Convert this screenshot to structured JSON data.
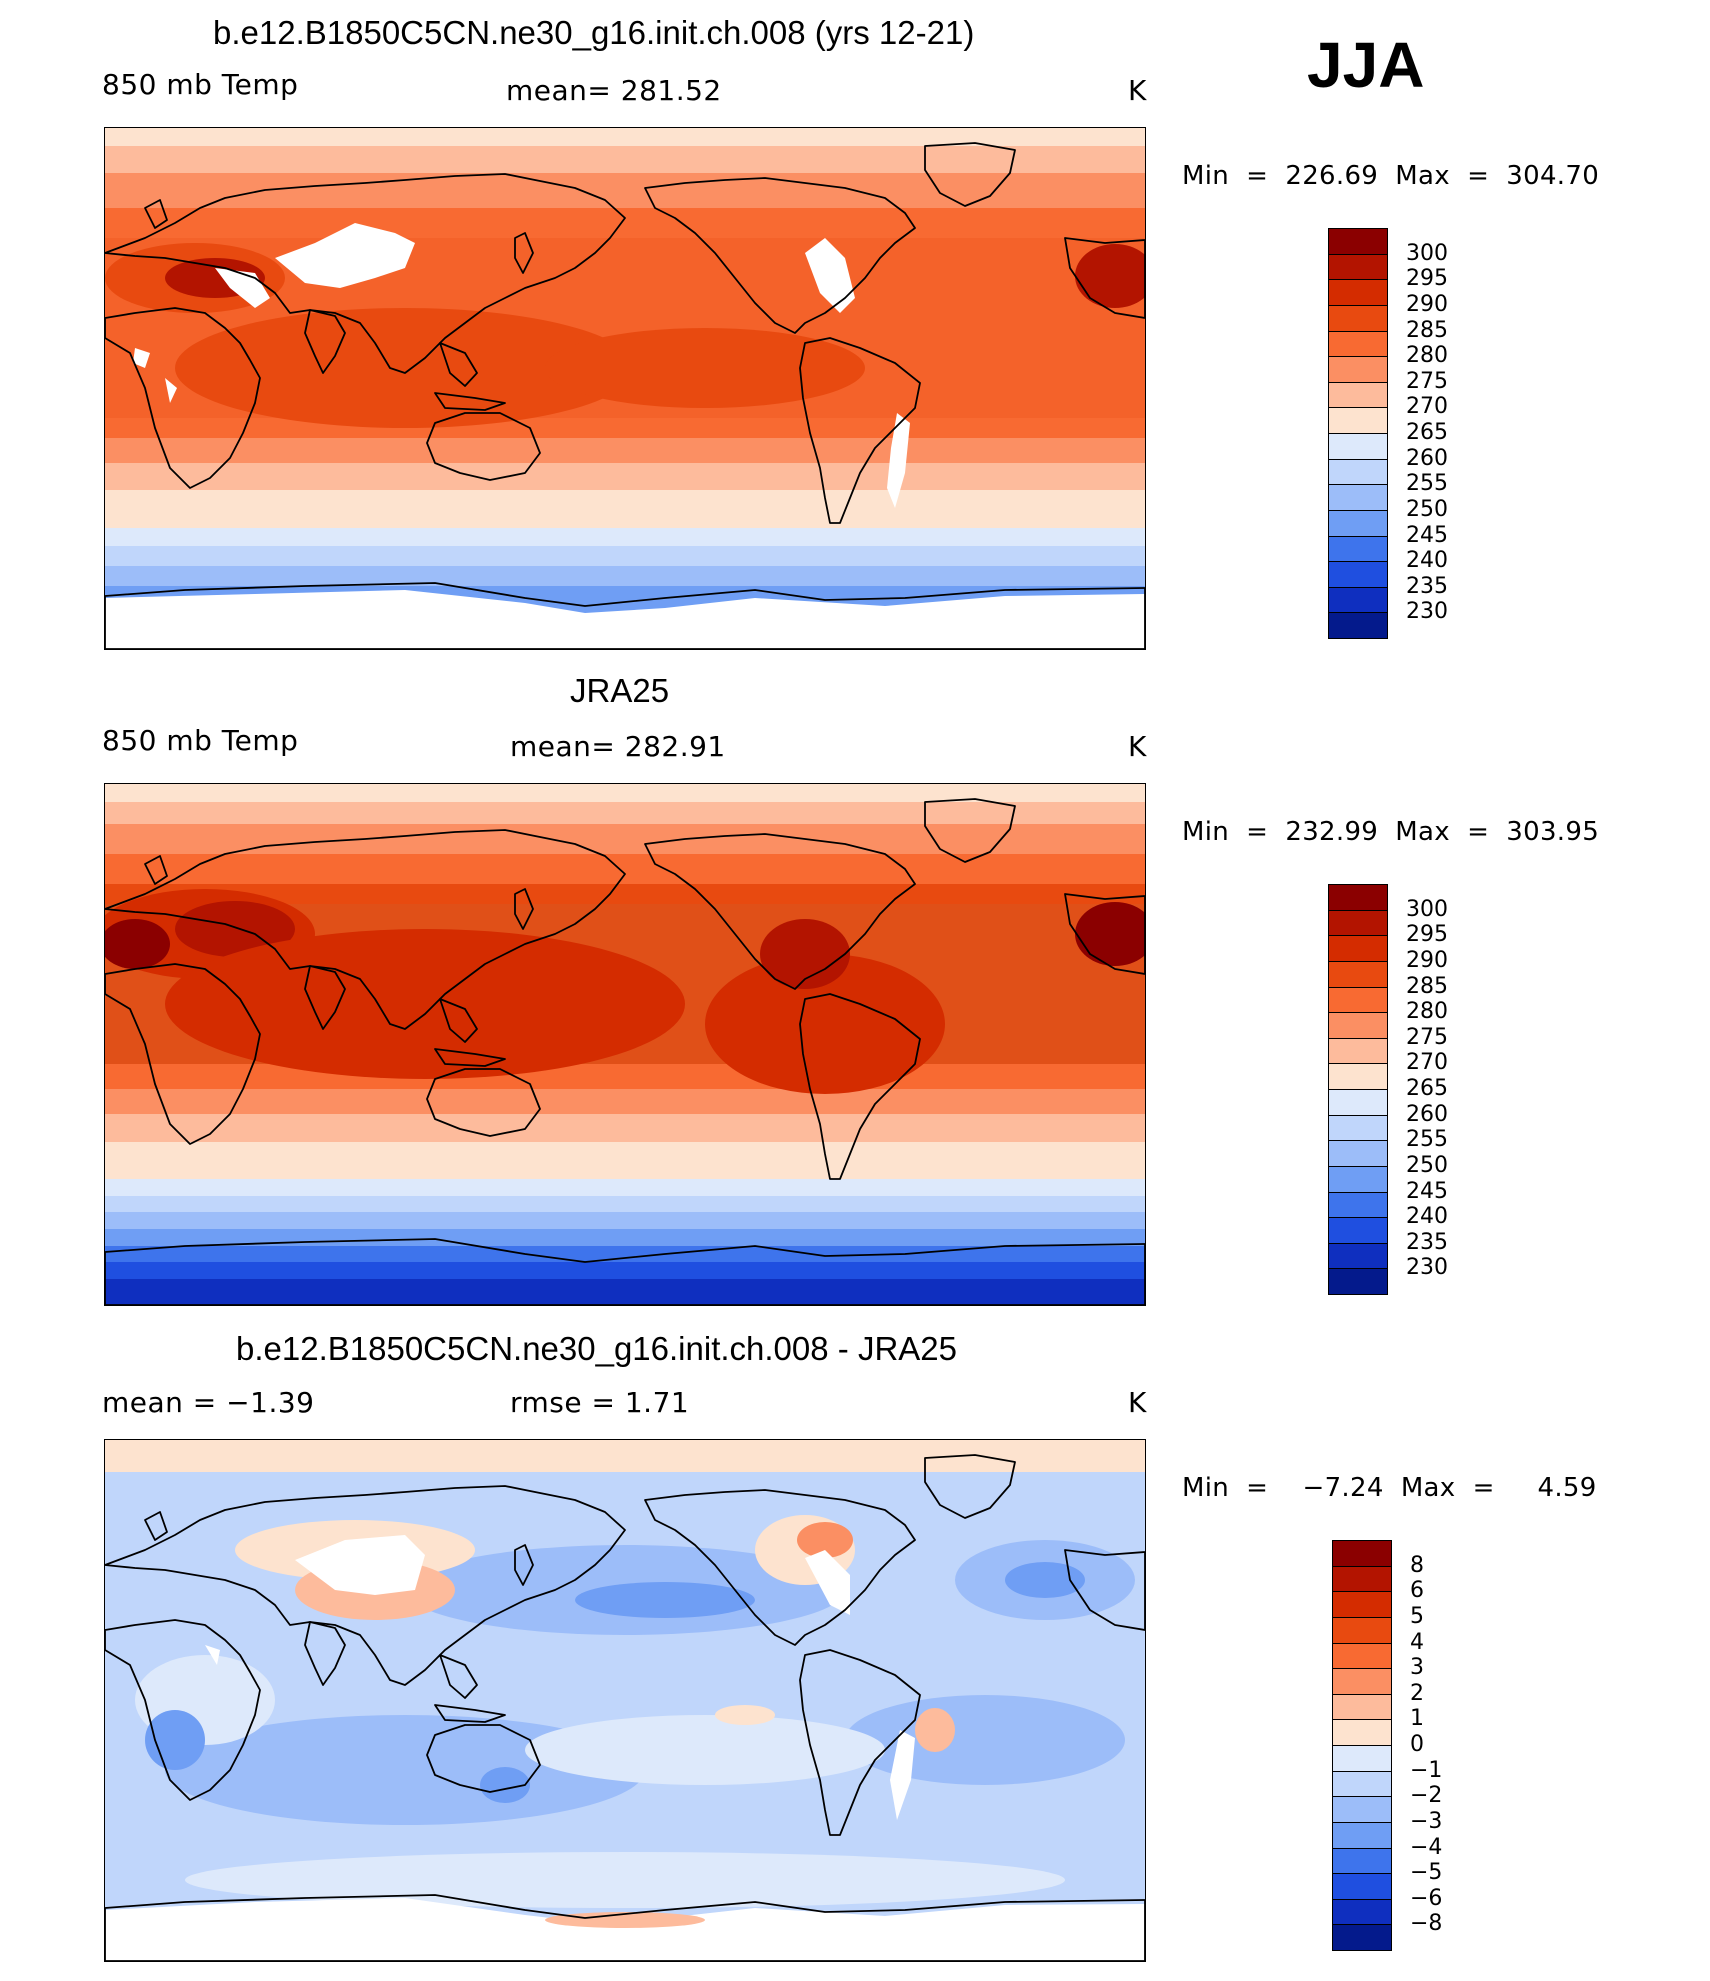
{
  "season": "JJA",
  "panels": [
    {
      "id": "model",
      "title": "b.e12.B1850C5CN.ne30_g16.init.ch.008 (yrs 12-21)",
      "left_label": "850 mb Temp",
      "center_label": "mean=  281.52",
      "units": "K",
      "minmax": "Min  =  226.69  Max  =  304.70",
      "colorbar_labels": [
        "300",
        "295",
        "290",
        "285",
        "280",
        "275",
        "270",
        "265",
        "260",
        "255",
        "250",
        "245",
        "240",
        "235",
        "230"
      ],
      "colorbar_colors": [
        "#8b0000",
        "#b31400",
        "#d42c00",
        "#e84a10",
        "#f86a32",
        "#fb8f63",
        "#fdbb9c",
        "#fde3cf",
        "#dde9fb",
        "#c0d6fb",
        "#9cbdf9",
        "#6f9ef4",
        "#3e74ec",
        "#1f4fe0",
        "#0f2fbf",
        "#041a8c"
      ],
      "map_field": "model",
      "map_colors": {
        "ocean_low_lat": "#f4622a",
        "ocean_mid": "#fb8f63",
        "land_hot": "#b31400",
        "antarctic": "#6f9ef4",
        "highland": "#ffffff"
      }
    },
    {
      "id": "obs",
      "title": "JRA25",
      "left_label": "850 mb Temp",
      "center_label": "mean=  282.91",
      "units": "K",
      "minmax": "Min  =  232.99  Max  =  303.95",
      "colorbar_labels": [
        "300",
        "295",
        "290",
        "285",
        "280",
        "275",
        "270",
        "265",
        "260",
        "255",
        "250",
        "245",
        "240",
        "235",
        "230"
      ],
      "colorbar_colors": [
        "#8b0000",
        "#b31400",
        "#d42c00",
        "#e84a10",
        "#f86a32",
        "#fb8f63",
        "#fdbb9c",
        "#fde3cf",
        "#dde9fb",
        "#c0d6fb",
        "#9cbdf9",
        "#6f9ef4",
        "#3e74ec",
        "#1f4fe0",
        "#0f2fbf",
        "#041a8c"
      ],
      "map_field": "obs"
    },
    {
      "id": "diff",
      "title": "b.e12.B1850C5CN.ne30_g16.init.ch.008 - JRA25",
      "left_label": "mean  =    −1.39",
      "center_label": "rmse  =     1.71",
      "units": "K",
      "minmax": "Min  =    −7.24  Max  =     4.59",
      "colorbar_labels": [
        "8",
        "6",
        "5",
        "4",
        "3",
        "2",
        "1",
        "0",
        "−1",
        "−2",
        "−3",
        "−4",
        "−5",
        "−6",
        "−8"
      ],
      "colorbar_colors": [
        "#8b0000",
        "#b31400",
        "#d42c00",
        "#e84a10",
        "#f86a32",
        "#fb8f63",
        "#fdbb9c",
        "#fde3cf",
        "#dde9fb",
        "#c0d6fb",
        "#9cbdf9",
        "#6f9ef4",
        "#3e74ec",
        "#1f4fe0",
        "#0f2fbf",
        "#041a8c"
      ],
      "map_field": "diff"
    }
  ]
}
